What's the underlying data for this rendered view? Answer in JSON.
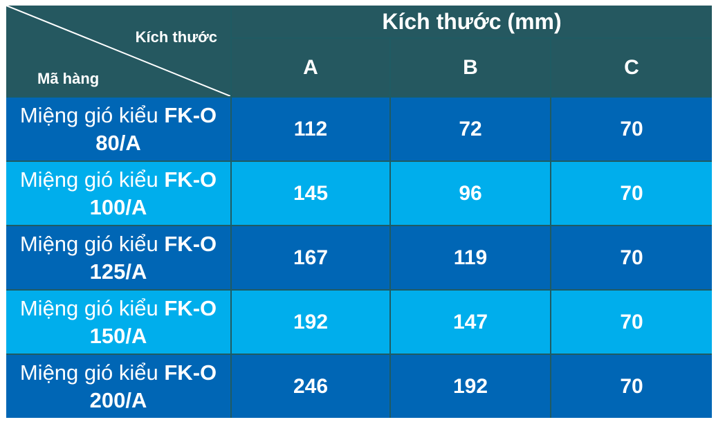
{
  "table": {
    "corner": {
      "top_label": "Kích thước",
      "bottom_label": "Mã hàng"
    },
    "group_header": "Kích thước (mm)",
    "columns": [
      "A",
      "B",
      "C"
    ],
    "rows": [
      {
        "label_prefix": "Miệng gió kiểu ",
        "label_bold": "FK-O",
        "label_suffix": "80/A",
        "values": [
          "112",
          "72",
          "70"
        ]
      },
      {
        "label_prefix": "Miệng gió kiểu ",
        "label_bold": "FK-O",
        "label_suffix": "100/A",
        "values": [
          "145",
          "96",
          "70"
        ]
      },
      {
        "label_prefix": "Miệng gió kiểu ",
        "label_bold": "FK-O",
        "label_suffix": "125/A",
        "values": [
          "167",
          "119",
          "70"
        ]
      },
      {
        "label_prefix": "Miệng gió kiểu ",
        "label_bold": "FK-O",
        "label_suffix": "150/A",
        "values": [
          "192",
          "147",
          "70"
        ]
      },
      {
        "label_prefix": "Miệng gió kiểu ",
        "label_bold": "FK-O",
        "label_suffix": "200/A",
        "values": [
          "246",
          "192",
          "70"
        ]
      }
    ],
    "colors": {
      "header": "#255860",
      "row_dark": "#0066b5",
      "row_light": "#00aeec",
      "text": "#ffffff"
    }
  }
}
